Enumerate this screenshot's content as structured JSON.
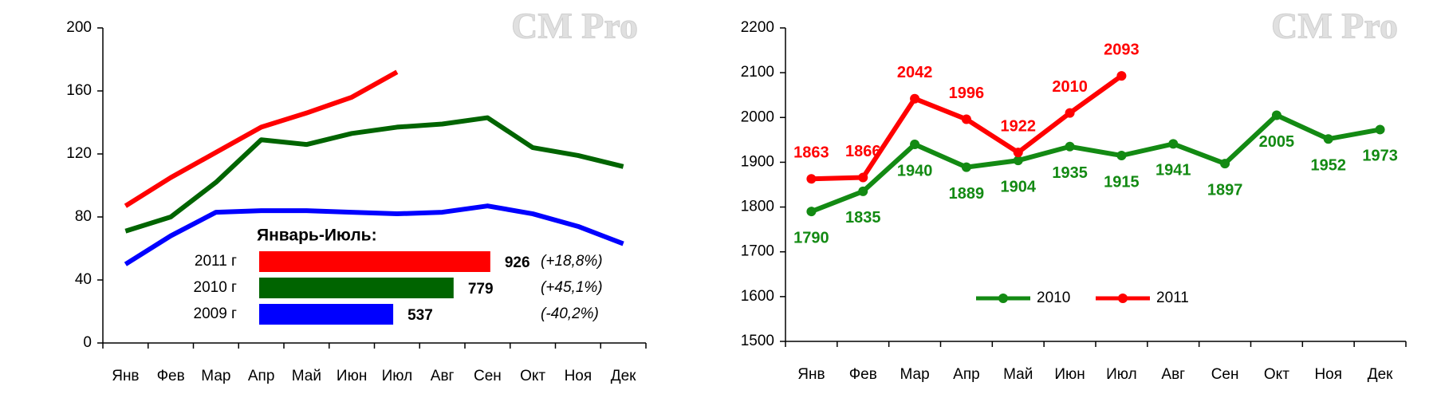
{
  "chart_data": [
    {
      "type": "line",
      "watermark": "CM Pro",
      "categories": [
        "Янв",
        "Фев",
        "Мар",
        "Апр",
        "Май",
        "Июн",
        "Июл",
        "Авг",
        "Сен",
        "Окт",
        "Ноя",
        "Дек"
      ],
      "ylim": [
        0,
        200
      ],
      "yticks": [
        0,
        40,
        80,
        120,
        160,
        200
      ],
      "series": [
        {
          "color": "#ff0000",
          "values": [
            87,
            105,
            121,
            137,
            146,
            156,
            172,
            null,
            null,
            null,
            null,
            null
          ]
        },
        {
          "color": "#006400",
          "values": [
            71,
            80,
            102,
            129,
            126,
            133,
            137,
            139,
            143,
            124,
            119,
            112
          ]
        },
        {
          "color": "#0000ff",
          "values": [
            50,
            68,
            83,
            84,
            84,
            83,
            82,
            83,
            87,
            82,
            74,
            63
          ]
        }
      ],
      "inset": {
        "type": "bar",
        "title": "Январь-Июль:",
        "categories": [
          "2011 г",
          "2010 г",
          "2009 г"
        ],
        "values": [
          926,
          779,
          537
        ],
        "colors": [
          "#ff0000",
          "#006400",
          "#0000ff"
        ],
        "changes": [
          "(+18,8%)",
          "(+45,1%)",
          "(-40,2%)"
        ]
      }
    },
    {
      "type": "line",
      "watermark": "CM Pro",
      "categories": [
        "Янв",
        "Фев",
        "Мар",
        "Апр",
        "Май",
        "Июн",
        "Июл",
        "Авг",
        "Сен",
        "Окт",
        "Ноя",
        "Дек"
      ],
      "ylim": [
        1500,
        2200
      ],
      "yticks": [
        1500,
        1600,
        1700,
        1800,
        1900,
        2000,
        2100,
        2200
      ],
      "markers": true,
      "data_labels": true,
      "legend": "bottom",
      "series": [
        {
          "name": "2010",
          "color": "#138a13",
          "label_pos": "below",
          "values": [
            1790,
            1835,
            1940,
            1889,
            1904,
            1935,
            1915,
            1941,
            1897,
            2005,
            1952,
            1973
          ]
        },
        {
          "name": "2011",
          "color": "#ff0000",
          "label_pos": "above",
          "values": [
            1863,
            1866,
            2042,
            1996,
            1922,
            2010,
            2093,
            null,
            null,
            null,
            null,
            null
          ]
        }
      ]
    }
  ]
}
